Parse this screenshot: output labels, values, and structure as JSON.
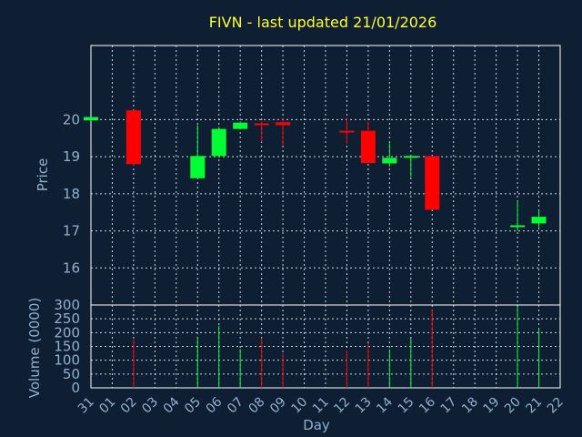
{
  "title": "FIVN - last updated 21/01/2026",
  "colors": {
    "background": "#0f1f33",
    "up": "#00ff33",
    "down": "#ff0000",
    "text": "#8fb0cf",
    "title": "#ffff33",
    "grid": "#ffffff"
  },
  "chart_data": [
    {
      "type": "candlestick",
      "ylabel": "Price",
      "ylim": [
        15,
        22
      ],
      "yticks": [
        16,
        17,
        18,
        19,
        20
      ],
      "grid": true,
      "categories": [
        "31",
        "01",
        "02",
        "03",
        "04",
        "05",
        "06",
        "07",
        "08",
        "09",
        "10",
        "11",
        "12",
        "13",
        "14",
        "15",
        "16",
        "17",
        "18",
        "19",
        "20",
        "21",
        "22"
      ],
      "candles": [
        {
          "day": "31",
          "open": 19.98,
          "close": 20.07,
          "high": 20.07,
          "low": 19.98
        },
        {
          "day": "02",
          "open": 20.25,
          "close": 18.8,
          "high": 20.25,
          "low": 18.75
        },
        {
          "day": "05",
          "open": 18.42,
          "close": 19.02,
          "high": 19.85,
          "low": 18.42
        },
        {
          "day": "06",
          "open": 19.02,
          "close": 19.75,
          "high": 19.8,
          "low": 19.0
        },
        {
          "day": "07",
          "open": 19.75,
          "close": 19.92,
          "high": 19.95,
          "low": 19.75
        },
        {
          "day": "08",
          "open": 19.9,
          "close": 19.87,
          "high": 19.95,
          "low": 19.4
        },
        {
          "day": "09",
          "open": 19.93,
          "close": 19.85,
          "high": 20.05,
          "low": 19.3
        },
        {
          "day": "12",
          "open": 19.7,
          "close": 19.68,
          "high": 20.05,
          "low": 19.35
        },
        {
          "day": "13",
          "open": 19.7,
          "close": 18.83,
          "high": 19.95,
          "low": 18.83
        },
        {
          "day": "14",
          "open": 18.82,
          "close": 18.97,
          "high": 19.4,
          "low": 18.73
        },
        {
          "day": "15",
          "open": 19.0,
          "close": 19.02,
          "high": 19.05,
          "low": 18.45
        },
        {
          "day": "16",
          "open": 19.02,
          "close": 17.57,
          "high": 19.02,
          "low": 17.57
        },
        {
          "day": "20",
          "open": 17.1,
          "close": 17.15,
          "high": 17.8,
          "low": 17.0
        },
        {
          "day": "21",
          "open": 17.2,
          "close": 17.38,
          "high": 17.55,
          "low": 17.1
        }
      ]
    },
    {
      "type": "bar",
      "ylabel": "Volume (0000)",
      "xlabel": "Day",
      "ylim": [
        0,
        300
      ],
      "yticks": [
        0,
        50,
        100,
        150,
        200,
        250,
        300
      ],
      "grid": true,
      "categories": [
        "31",
        "01",
        "02",
        "03",
        "04",
        "05",
        "06",
        "07",
        "08",
        "09",
        "10",
        "11",
        "12",
        "13",
        "14",
        "15",
        "16",
        "17",
        "18",
        "19",
        "20",
        "21",
        "22"
      ],
      "bars": [
        {
          "day": "02",
          "value": 175,
          "direction": "down"
        },
        {
          "day": "05",
          "value": 185,
          "direction": "up"
        },
        {
          "day": "06",
          "value": 225,
          "direction": "up"
        },
        {
          "day": "07",
          "value": 140,
          "direction": "up"
        },
        {
          "day": "08",
          "value": 180,
          "direction": "down"
        },
        {
          "day": "09",
          "value": 125,
          "direction": "down"
        },
        {
          "day": "12",
          "value": 135,
          "direction": "down"
        },
        {
          "day": "13",
          "value": 160,
          "direction": "down"
        },
        {
          "day": "14",
          "value": 140,
          "direction": "up"
        },
        {
          "day": "15",
          "value": 178,
          "direction": "up"
        },
        {
          "day": "16",
          "value": 285,
          "direction": "down"
        },
        {
          "day": "20",
          "value": 295,
          "direction": "up"
        },
        {
          "day": "21",
          "value": 215,
          "direction": "up"
        }
      ]
    }
  ]
}
